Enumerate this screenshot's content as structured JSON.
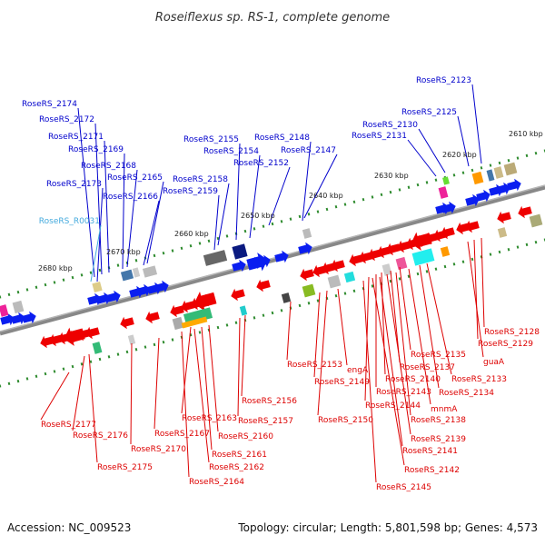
{
  "title": "Roseiflexus sp. RS-1, complete genome",
  "accession": "Accession: NC_009523",
  "topology": "Topology: circular; Length: 5,801,598 bp; Genes: 4,573",
  "colors": {
    "forward_label": "#0000cc",
    "reverse_label": "#dd0000",
    "rna_label": "#44aadd",
    "forward_gene": "#0a1ef0",
    "reverse_gene": "#ee0000",
    "backbone": "#888888",
    "tick": "#2e8b2e"
  },
  "scale_labels": [
    "2610 kbp",
    "2620 kbp",
    "2630 kbp",
    "2640 kbp",
    "2650 kbp",
    "2660 kbp",
    "2670 kbp",
    "2680 kbp"
  ],
  "forward_labels": [
    "RoseRS_2123",
    "RoseRS_2125",
    "RoseRS_2130",
    "RoseRS_2131",
    "RoseRS_2147",
    "RoseRS_2148",
    "RoseRS_2152",
    "RoseRS_2154",
    "RoseRS_2155",
    "RoseRS_2158",
    "RoseRS_2159",
    "RoseRS_2165",
    "RoseRS_2166",
    "RoseRS_2168",
    "RoseRS_2169",
    "RoseRS_2171",
    "RoseRS_2172",
    "RoseRS_2173",
    "RoseRS_2174"
  ],
  "rna_labels": [
    "RoseRS_R0031"
  ],
  "reverse_labels": [
    "RoseRS_2128",
    "RoseRS_2129",
    "guaA",
    "RoseRS_2133",
    "RoseRS_2134",
    "RoseRS_2135",
    "RoseRS_2137",
    "RoseRS_2140",
    "RoseRS_2143",
    "RoseRS_2144",
    "mnmA",
    "RoseRS_2138",
    "RoseRS_2139",
    "RoseRS_2141",
    "RoseRS_2142",
    "RoseRS_2145",
    "engA",
    "RoseRS_2149",
    "RoseRS_2150",
    "RoseRS_2153",
    "RoseRS_2156",
    "RoseRS_2157",
    "RoseRS_2160",
    "RoseRS_2161",
    "RoseRS_2162",
    "RoseRS_2163",
    "RoseRS_2164",
    "RoseRS_2167",
    "RoseRS_2170",
    "RoseRS_2175",
    "RoseRS_2176",
    "RoseRS_2177"
  ]
}
